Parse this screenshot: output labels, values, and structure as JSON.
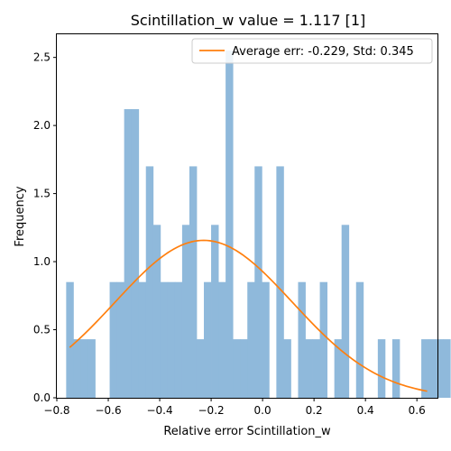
{
  "chart_data": {
    "type": "bar",
    "title": "Scintillation_w value = 1.117 [1]",
    "xlabel": "Relative error Scintillation_w",
    "ylabel": "Frequency",
    "xlim": [
      -0.8,
      0.68
    ],
    "ylim": [
      0,
      2.67
    ],
    "xticks": [
      -0.8,
      -0.6,
      -0.4,
      -0.2,
      0.0,
      0.2,
      0.4,
      0.6
    ],
    "xtick_labels": [
      "−0.8",
      "−0.6",
      "−0.4",
      "−0.2",
      "0.0",
      "0.2",
      "0.4",
      "0.6"
    ],
    "yticks": [
      0.0,
      0.5,
      1.0,
      1.5,
      2.0,
      2.5
    ],
    "ytick_labels": [
      "0.0",
      "0.5",
      "1.0",
      "1.5",
      "2.0",
      "2.5"
    ],
    "bin_start": -0.7637,
    "bin_width": 0.02818,
    "bin_values": [
      0.85,
      0.43,
      0.43,
      0.43,
      0,
      0,
      0.85,
      0.85,
      2.12,
      2.12,
      0.85,
      1.7,
      1.27,
      0.85,
      0.85,
      0.85,
      1.27,
      1.7,
      0.43,
      0.85,
      1.27,
      0.85,
      2.55,
      0.43,
      0.43,
      0.85,
      1.7,
      0.85,
      0,
      1.7,
      0.43,
      0,
      0.85,
      0.43,
      0.43,
      0.85,
      0,
      0.43,
      1.27,
      0,
      0.85,
      0,
      0,
      0.43,
      0,
      0.43,
      0,
      0,
      0,
      0.43,
      0.43,
      0.43,
      0.43
    ],
    "bar_color": "#8fb9db",
    "series": [
      {
        "name": "Average err: -0.229, Std: 0.345",
        "type": "line",
        "mean": -0.229,
        "std": 0.345,
        "x_range": [
          -0.75,
          0.64
        ],
        "color": "#ff7f0e"
      }
    ],
    "legend_position": "top-right"
  }
}
